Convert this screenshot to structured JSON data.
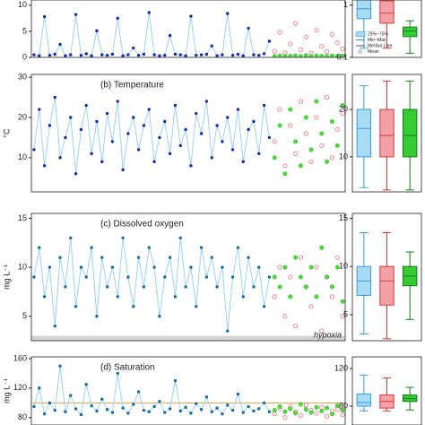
{
  "chart_data": [
    {
      "type": "line",
      "ylim": [
        0,
        11
      ],
      "yticks": [
        0,
        5,
        10
      ],
      "line_color": "#9ed3f0",
      "series": [
        {
          "color": "#1a2f9e",
          "values": [
            0.5,
            0.3,
            7.8,
            0.4,
            0.6,
            2.5,
            0.3,
            0.5,
            8.2,
            0.4,
            0.7,
            0.3,
            5.1,
            0.5,
            0.4,
            0.6,
            7.5,
            0.3,
            0.5,
            1.8,
            0.4,
            0.6,
            8.6,
            0.5,
            0.3,
            0.4,
            4.2,
            0.6,
            0.5,
            0.3,
            7.9,
            0.4,
            0.5,
            0.6,
            2.2,
            0.3,
            0.5,
            8.4,
            0.4,
            0.6,
            0.3,
            5.6,
            0.5,
            0.4,
            0.7,
            3.1,
            null,
            null,
            null,
            null,
            null,
            null,
            null,
            null,
            null,
            null,
            null,
            null,
            null,
            null
          ]
        },
        {
          "color": "#e8808c",
          "values": [
            null,
            null,
            null,
            null,
            null,
            null,
            null,
            null,
            null,
            null,
            null,
            null,
            null,
            null,
            null,
            null,
            null,
            null,
            null,
            null,
            null,
            null,
            null,
            null,
            null,
            null,
            null,
            null,
            null,
            null,
            null,
            null,
            null,
            null,
            null,
            null,
            null,
            null,
            null,
            null,
            null,
            null,
            null,
            null,
            null,
            null,
            1.2,
            4.8,
            0.9,
            2.6,
            6.5,
            1.5,
            3.9,
            0.8,
            5.2,
            2.1,
            1.1,
            4.4,
            2.8,
            1.6
          ]
        },
        {
          "color": "#4ddc3a",
          "values": [
            null,
            null,
            null,
            null,
            null,
            null,
            null,
            null,
            null,
            null,
            null,
            null,
            null,
            null,
            null,
            null,
            null,
            null,
            null,
            null,
            null,
            null,
            null,
            null,
            null,
            null,
            null,
            null,
            null,
            null,
            null,
            null,
            null,
            null,
            null,
            null,
            null,
            null,
            null,
            null,
            null,
            null,
            null,
            null,
            null,
            null,
            0.2,
            0.3,
            0.2,
            0.25,
            0.3,
            0.2,
            0.35,
            0.2,
            0.3,
            0.25,
            0.2,
            0.3,
            0.2,
            0.25
          ]
        }
      ],
      "boxplot": {
        "log": true,
        "ylim": [
          0.1,
          1.25
        ],
        "yticks": [
          0.1,
          1
        ],
        "boxes": [
          {
            "color": "#a8dcf5",
            "stroke": "#3a9ad8",
            "min": 0.15,
            "q1": 0.55,
            "median": 0.85,
            "q3": 1.3,
            "max": 1.3
          },
          {
            "color": "#f4a0a6",
            "stroke": "#d63a3a",
            "min": 0.15,
            "q1": 0.45,
            "median": 0.7,
            "q3": 1.2,
            "max": 1.3
          },
          {
            "color": "#33cc33",
            "stroke": "#1a7a1a",
            "min": 0.12,
            "q1": 0.25,
            "median": 0.32,
            "q3": 0.38,
            "max": 0.5
          }
        ],
        "legend": [
          "25%~75%",
          "Min~Max",
          "Median Line",
          "Mean"
        ]
      }
    },
    {
      "type": "line",
      "title": "(b) Temperature",
      "y_label": "°C",
      "ylim": [
        1.5,
        30.7
      ],
      "yticks": [
        10,
        20,
        30
      ],
      "line_color": "#9ed3f0",
      "series": [
        {
          "color": "#1a2f9e",
          "values": [
            12,
            22,
            8,
            18,
            25,
            10,
            15,
            20,
            6,
            17,
            23,
            11,
            19,
            9,
            21,
            14,
            24,
            7,
            16,
            20,
            12,
            18,
            22,
            9,
            15,
            19,
            11,
            23,
            13,
            17,
            8,
            21,
            16,
            24,
            10,
            18,
            14,
            20,
            12,
            22,
            9,
            17,
            19,
            11,
            23,
            15,
            null,
            null,
            null,
            null,
            null,
            null,
            null,
            null,
            null,
            null,
            null,
            null,
            null,
            null
          ]
        },
        {
          "color": "#e8808c",
          "values": [
            null,
            null,
            null,
            null,
            null,
            null,
            null,
            null,
            null,
            null,
            null,
            null,
            null,
            null,
            null,
            null,
            null,
            null,
            null,
            null,
            null,
            null,
            null,
            null,
            null,
            null,
            null,
            null,
            null,
            null,
            null,
            null,
            null,
            null,
            null,
            null,
            null,
            null,
            null,
            null,
            null,
            null,
            null,
            null,
            null,
            null,
            14,
            22,
            8,
            18,
            11,
            24,
            16,
            9,
            20,
            13,
            25,
            10,
            17,
            21
          ]
        },
        {
          "color": "#4ddc3a",
          "values": [
            null,
            null,
            null,
            null,
            null,
            null,
            null,
            null,
            null,
            null,
            null,
            null,
            null,
            null,
            null,
            null,
            null,
            null,
            null,
            null,
            null,
            null,
            null,
            null,
            null,
            null,
            null,
            null,
            null,
            null,
            null,
            null,
            null,
            null,
            null,
            null,
            null,
            null,
            null,
            null,
            null,
            null,
            null,
            null,
            null,
            null,
            10,
            18,
            6,
            22,
            14,
            8,
            20,
            12,
            24,
            16,
            9,
            19,
            13,
            23
          ]
        }
      ],
      "boxplot": {
        "ylim": [
          2.6,
          27.4
        ],
        "yticks": [
          10,
          20
        ],
        "boxes": [
          {
            "color": "#a8dcf5",
            "stroke": "#3a9ad8",
            "min": 3.5,
            "q1": 10,
            "median": 16,
            "q3": 20,
            "max": 25
          },
          {
            "color": "#f4a0a6",
            "stroke": "#d63a3a",
            "min": 3,
            "q1": 10,
            "median": 14.5,
            "q3": 20,
            "max": 26
          },
          {
            "color": "#33cc33",
            "stroke": "#1a7a1a",
            "min": 3,
            "q1": 10,
            "median": 14.5,
            "q3": 20,
            "max": 26
          }
        ]
      }
    },
    {
      "type": "line",
      "title": "(c) Dissolved oxygen",
      "y_label": "mg L⁻¹",
      "ylim": [
        2.5,
        15.5
      ],
      "yticks": [
        5,
        10,
        15
      ],
      "line_color": "#9ed3f0",
      "hypoxia": {
        "label": "hypoxia",
        "values": [
          2,
          3
        ]
      },
      "series": [
        {
          "color": "#1a6a9e",
          "values": [
            9,
            12,
            7,
            10,
            4,
            11,
            8,
            13,
            6,
            10,
            9,
            12,
            5,
            11,
            8,
            10,
            7,
            13,
            9,
            6,
            11,
            8,
            12,
            10,
            5,
            9,
            11,
            7,
            13,
            8,
            10,
            6,
            12,
            9,
            11,
            8,
            10,
            3.5,
            9,
            12,
            7,
            11,
            8,
            10,
            6,
            9,
            null,
            null,
            null,
            null,
            null,
            null,
            null,
            null,
            null,
            null,
            null,
            null,
            null,
            null
          ]
        },
        {
          "color": "#e8808c",
          "values": [
            null,
            null,
            null,
            null,
            null,
            null,
            null,
            null,
            null,
            null,
            null,
            null,
            null,
            null,
            null,
            null,
            null,
            null,
            null,
            null,
            null,
            null,
            null,
            null,
            null,
            null,
            null,
            null,
            null,
            null,
            null,
            null,
            null,
            null,
            null,
            null,
            null,
            null,
            null,
            null,
            null,
            null,
            null,
            null,
            null,
            null,
            7,
            10,
            5,
            9,
            4,
            11,
            8,
            6,
            10,
            3.5,
            9,
            7,
            11,
            5
          ]
        },
        {
          "color": "#4ddc3a",
          "values": [
            null,
            null,
            null,
            null,
            null,
            null,
            null,
            null,
            null,
            null,
            null,
            null,
            null,
            null,
            null,
            null,
            null,
            null,
            null,
            null,
            null,
            null,
            null,
            null,
            null,
            null,
            null,
            null,
            null,
            null,
            null,
            null,
            null,
            null,
            null,
            null,
            null,
            null,
            null,
            null,
            null,
            null,
            null,
            null,
            null,
            null,
            9,
            8,
            10,
            7,
            11,
            9,
            8,
            10,
            7,
            12,
            9,
            8,
            10,
            6.5
          ]
        }
      ],
      "boxplot": {
        "ylim": [
          2.3,
          15.5
        ],
        "yticks": [
          5,
          10,
          15
        ],
        "boxes": [
          {
            "color": "#a8dcf5",
            "stroke": "#3a9ad8",
            "min": 3,
            "q1": 7,
            "median": 8.5,
            "q3": 10,
            "max": 13.5
          },
          {
            "color": "#f4a0a6",
            "stroke": "#d63a3a",
            "min": 2.5,
            "q1": 6,
            "median": 8.5,
            "q3": 10,
            "max": 13.5
          },
          {
            "color": "#33cc33",
            "stroke": "#1a7a1a",
            "min": 4.5,
            "q1": 8,
            "median": 9,
            "q3": 10,
            "max": 11.5
          }
        ]
      }
    },
    {
      "type": "line",
      "title": "(d) Saturation",
      "y_label": "mg L⁻¹",
      "ylim": [
        70,
        162.4
      ],
      "yticks": [
        80,
        120,
        160
      ],
      "line_color": "#9ed3f0",
      "reference_line": 100,
      "series": [
        {
          "color": "#1a6a9e",
          "values": [
            95,
            120,
            85,
            100,
            90,
            150,
            88,
            110,
            92,
            84,
            125,
            96,
            89,
            105,
            91,
            87,
            140,
            93,
            86,
            98,
            115,
            90,
            88,
            95,
            102,
            87,
            92,
            130,
            89,
            94,
            86,
            99,
            91,
            108,
            88,
            93,
            85,
            97,
            90,
            112,
            87,
            95,
            89,
            92,
            100,
            88,
            null,
            null,
            null,
            null,
            null,
            null,
            null,
            null,
            null,
            null,
            null,
            null,
            null,
            null
          ]
        },
        {
          "color": "#e8808c",
          "values": [
            null,
            null,
            null,
            null,
            null,
            null,
            null,
            null,
            null,
            null,
            null,
            null,
            null,
            null,
            null,
            null,
            null,
            null,
            null,
            null,
            null,
            null,
            null,
            null,
            null,
            null,
            null,
            null,
            null,
            null,
            null,
            null,
            null,
            null,
            null,
            null,
            null,
            null,
            null,
            null,
            null,
            null,
            null,
            null,
            null,
            null,
            85,
            92,
            80,
            95,
            88,
            83,
            97,
            90,
            86,
            94,
            82,
            89,
            91,
            84
          ]
        },
        {
          "color": "#4ddc3a",
          "values": [
            null,
            null,
            null,
            null,
            null,
            null,
            null,
            null,
            null,
            null,
            null,
            null,
            null,
            null,
            null,
            null,
            null,
            null,
            null,
            null,
            null,
            null,
            null,
            null,
            null,
            null,
            null,
            null,
            null,
            null,
            null,
            null,
            null,
            null,
            null,
            null,
            null,
            null,
            null,
            null,
            null,
            null,
            null,
            null,
            null,
            null,
            90,
            95,
            88,
            92,
            86,
            98,
            91,
            87,
            94,
            89,
            93,
            85,
            96,
            90
          ]
        }
      ],
      "boxplot": {
        "ylim": [
          60,
          132.4
        ],
        "yticks": [
          80,
          120
        ],
        "boxes": [
          {
            "color": "#a8dcf5",
            "stroke": "#3a9ad8",
            "min": 75,
            "q1": 80,
            "median": 84,
            "q3": 93,
            "max": 113
          },
          {
            "color": "#f4a0a6",
            "stroke": "#d63a3a",
            "min": 75,
            "q1": 78,
            "median": 85,
            "q3": 92,
            "max": 110
          },
          {
            "color": "#33cc33",
            "stroke": "#1a7a1a",
            "min": 76,
            "q1": 85,
            "median": 88,
            "q3": 92,
            "max": 100
          }
        ]
      }
    }
  ]
}
